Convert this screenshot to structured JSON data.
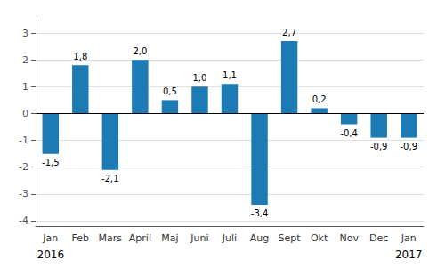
{
  "chart_data": {
    "type": "bar",
    "categories": [
      "Jan",
      "Feb",
      "Mars",
      "April",
      "Maj",
      "Juni",
      "Juli",
      "Aug",
      "Sept",
      "Okt",
      "Nov",
      "Dec",
      "Jan"
    ],
    "values": [
      -1.5,
      1.8,
      -2.1,
      2.0,
      0.5,
      1.0,
      1.1,
      -3.4,
      2.7,
      0.2,
      -0.4,
      -0.9,
      -0.9
    ],
    "value_labels": [
      "-1,5",
      "1,8",
      "-2,1",
      "2,0",
      "0,5",
      "1,0",
      "1,1",
      "-3,4",
      "2,7",
      "0,2",
      "-0,4",
      "-0,9",
      "-0,9"
    ],
    "data_labels": true,
    "color": "#1c7ab5",
    "ylim": [
      -4.2,
      3.5
    ],
    "yticks": [
      -4,
      -3,
      -2,
      -1,
      0,
      1,
      2,
      3
    ],
    "grid": true,
    "annotations": [
      {
        "text": "2016",
        "x": 0
      },
      {
        "text": "2017",
        "x": 12
      }
    ]
  }
}
